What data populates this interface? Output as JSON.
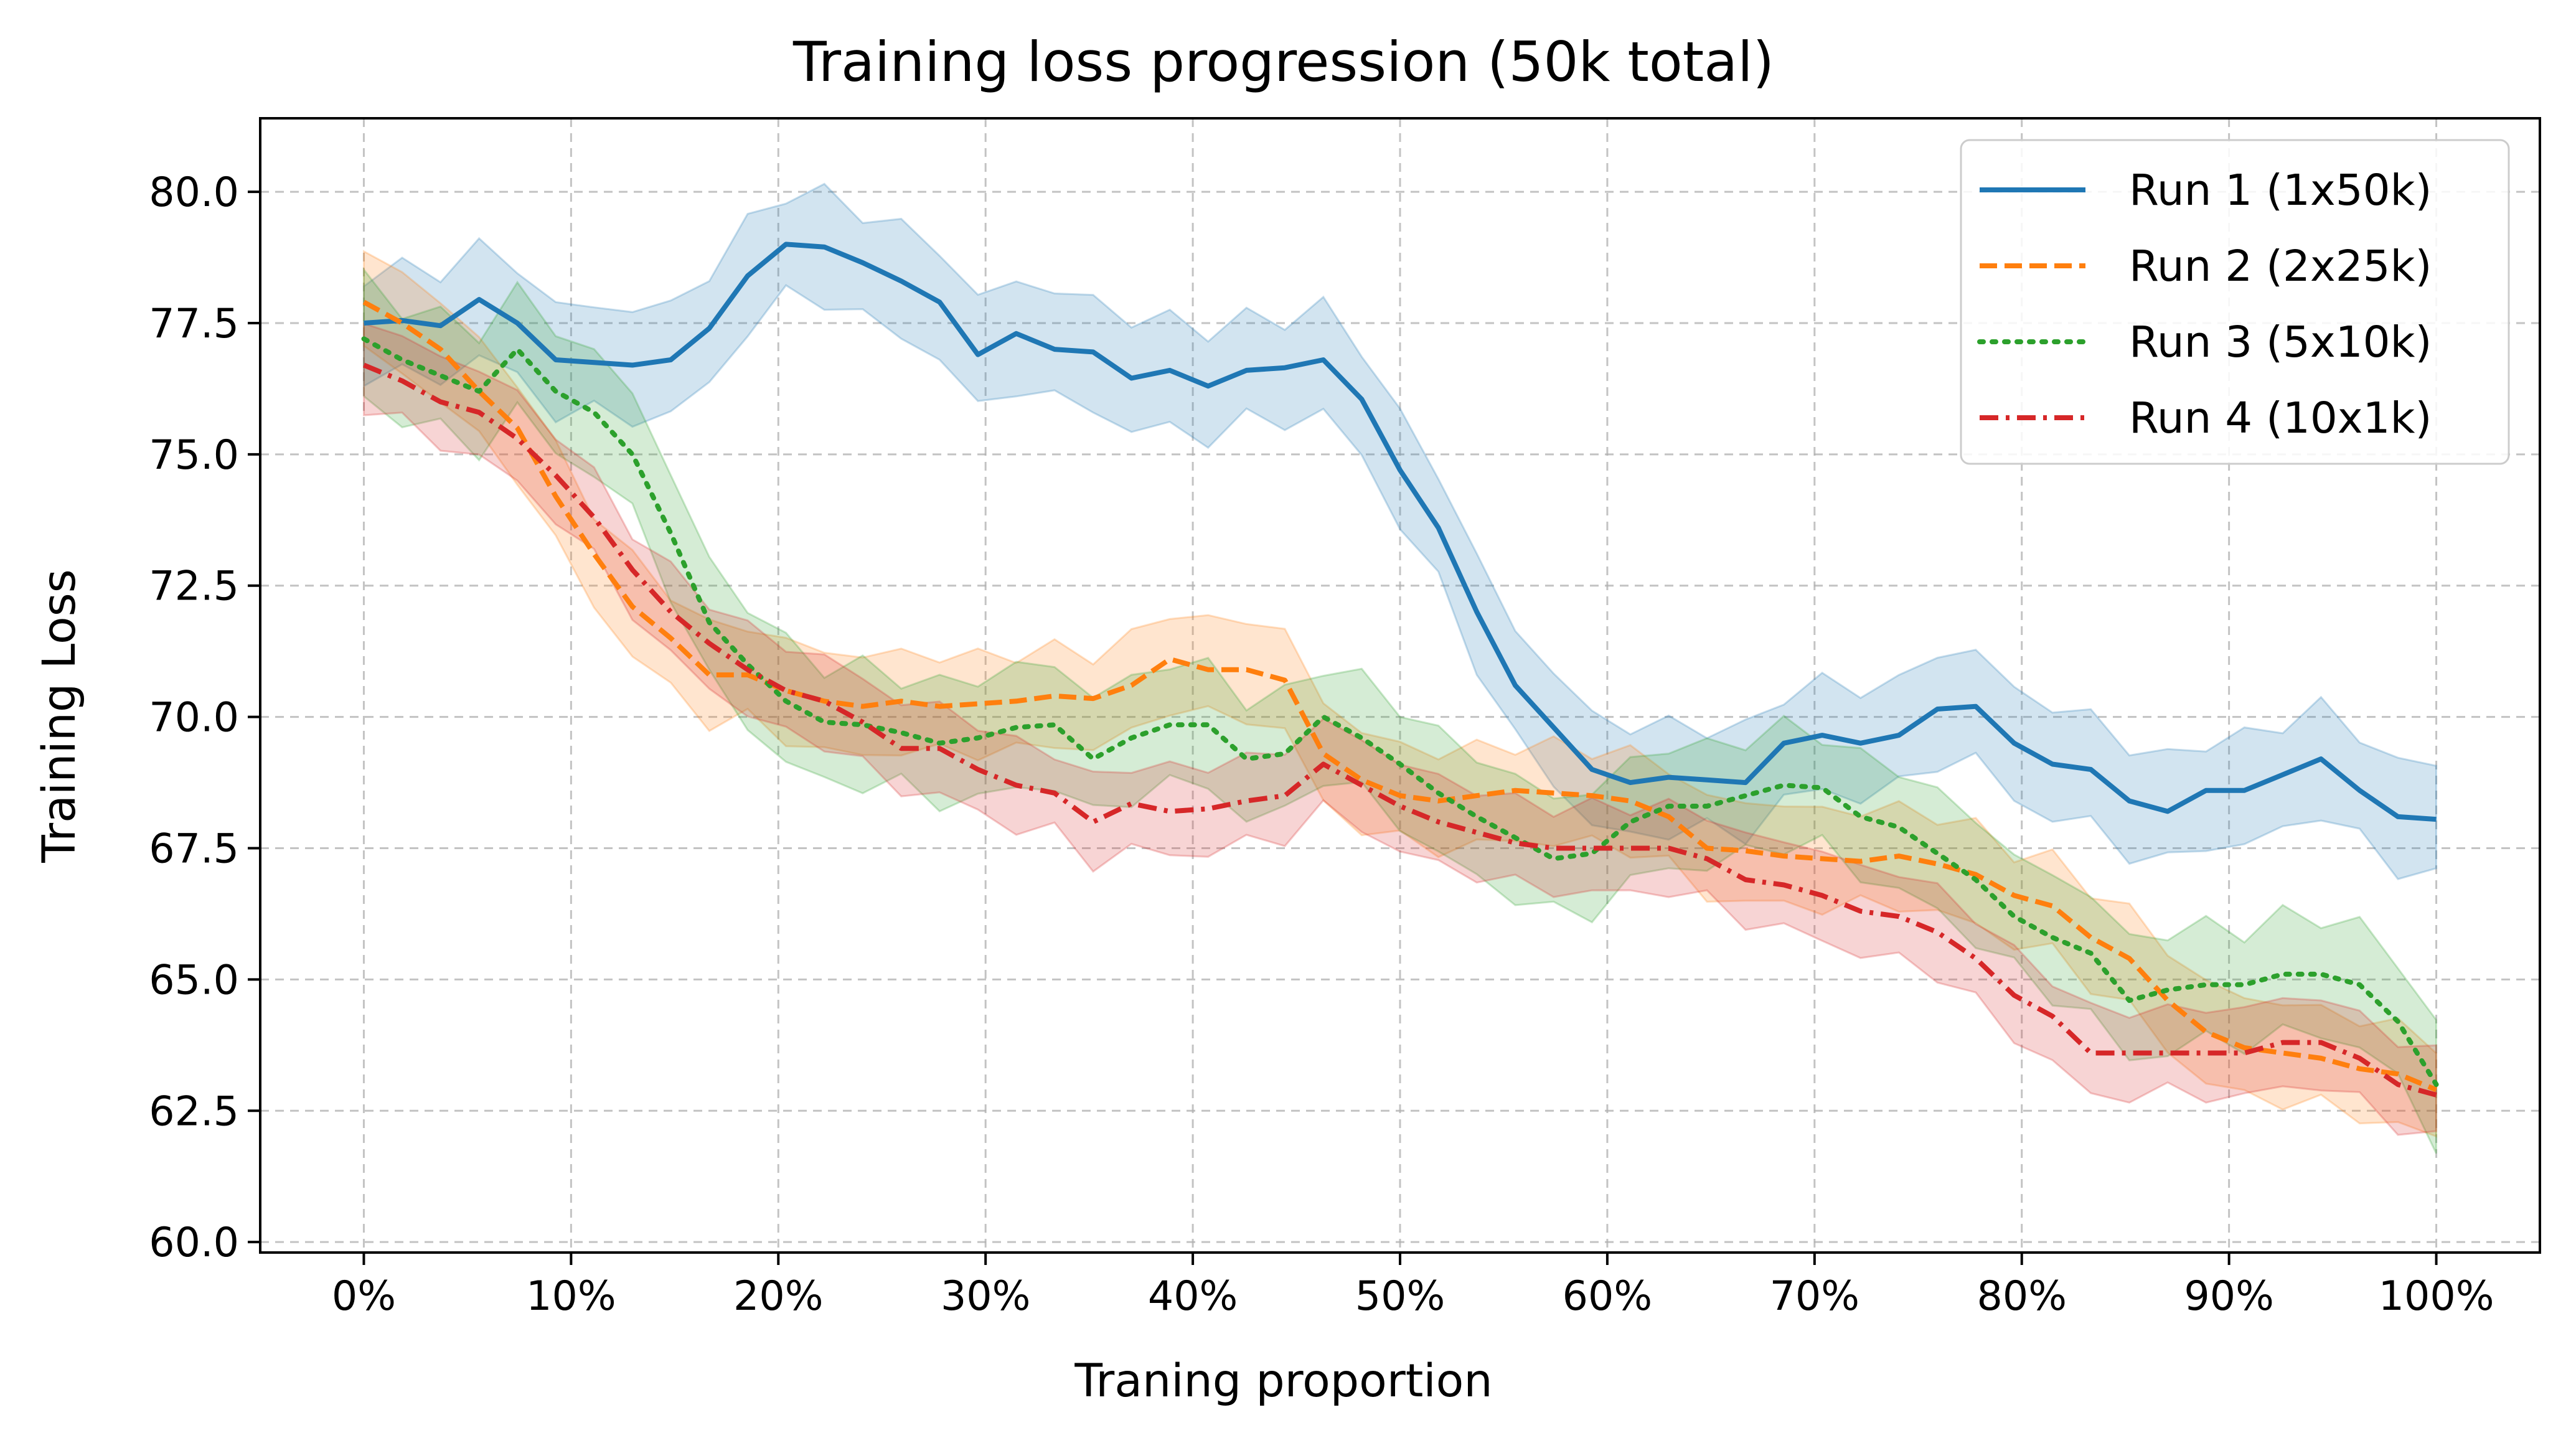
{
  "chart_data": {
    "type": "line",
    "title": "Training loss progression (50k total)",
    "xlabel": "Traning proportion",
    "ylabel": "Training Loss",
    "xlim": [
      -5,
      105
    ],
    "ylim": [
      59.8,
      81.4
    ],
    "xticks": [
      0,
      10,
      20,
      30,
      40,
      50,
      60,
      70,
      80,
      90,
      100
    ],
    "xtick_labels": [
      "0%",
      "10%",
      "20%",
      "30%",
      "40%",
      "50%",
      "60%",
      "70%",
      "80%",
      "90%",
      "100%"
    ],
    "yticks": [
      60.0,
      62.5,
      65.0,
      67.5,
      70.0,
      72.5,
      75.0,
      77.5,
      80.0
    ],
    "ytick_labels": [
      "60.0",
      "62.5",
      "65.0",
      "67.5",
      "70.0",
      "72.5",
      "75.0",
      "77.5",
      "80.0"
    ],
    "grid": true,
    "legend_position": "top-right",
    "x": [
      0,
      1.85,
      3.7,
      5.56,
      7.41,
      9.26,
      11.11,
      12.96,
      14.81,
      16.67,
      18.52,
      20.37,
      22.22,
      24.07,
      25.93,
      27.78,
      29.63,
      31.48,
      33.33,
      35.19,
      37.04,
      38.89,
      40.74,
      42.59,
      44.44,
      46.3,
      48.15,
      50,
      51.85,
      53.7,
      55.56,
      57.41,
      59.26,
      61.11,
      62.96,
      64.81,
      66.67,
      68.52,
      70.37,
      72.22,
      74.07,
      75.93,
      77.78,
      79.63,
      81.48,
      83.33,
      85.19,
      87.04,
      88.89,
      90.74,
      92.59,
      94.44,
      96.3,
      98.15,
      100
    ],
    "series": [
      {
        "name": "Run 1 (1x50k)",
        "color": "#1f77b4",
        "dash": "solid",
        "band": 1.0,
        "values": [
          77.5,
          77.55,
          77.45,
          77.95,
          77.5,
          76.8,
          76.75,
          76.7,
          76.8,
          77.4,
          78.4,
          79.0,
          78.95,
          78.65,
          78.3,
          77.9,
          76.9,
          77.3,
          77.0,
          76.95,
          76.45,
          76.6,
          76.3,
          76.6,
          76.65,
          76.8,
          76.05,
          74.7,
          73.6,
          72.0,
          70.6,
          69.8,
          69.0,
          68.75,
          68.85,
          68.8,
          68.75,
          69.5,
          69.65,
          69.5,
          69.65,
          70.15,
          70.2,
          69.5,
          69.1,
          69.0,
          68.4,
          68.2,
          68.6,
          68.6,
          68.9,
          69.2,
          68.6,
          68.1,
          68.05
        ]
      },
      {
        "name": "Run 2 (2x25k)",
        "color": "#ff7f0e",
        "dash": "dashed",
        "band": 0.9,
        "values": [
          77.9,
          77.5,
          77.0,
          76.2,
          75.5,
          74.2,
          73.1,
          72.1,
          71.5,
          70.8,
          70.8,
          70.5,
          70.3,
          70.2,
          70.3,
          70.2,
          70.25,
          70.3,
          70.4,
          70.35,
          70.6,
          71.1,
          70.9,
          70.9,
          70.7,
          69.3,
          68.8,
          68.5,
          68.4,
          68.5,
          68.6,
          68.55,
          68.5,
          68.4,
          68.1,
          67.5,
          67.45,
          67.35,
          67.3,
          67.25,
          67.35,
          67.2,
          67.0,
          66.6,
          66.4,
          65.8,
          65.4,
          64.6,
          64.0,
          63.7,
          63.6,
          63.5,
          63.3,
          63.2,
          62.9
        ]
      },
      {
        "name": "Run 3 (5x10k)",
        "color": "#2ca02c",
        "dash": "dotted",
        "band": 1.1,
        "values": [
          77.2,
          76.8,
          76.5,
          76.2,
          77.0,
          76.2,
          75.8,
          75.0,
          73.5,
          71.8,
          71.0,
          70.3,
          69.9,
          69.85,
          69.7,
          69.5,
          69.6,
          69.8,
          69.85,
          69.2,
          69.6,
          69.85,
          69.85,
          69.2,
          69.3,
          70.0,
          69.6,
          69.1,
          68.55,
          68.1,
          67.7,
          67.3,
          67.4,
          68.0,
          68.3,
          68.3,
          68.5,
          68.7,
          68.65,
          68.1,
          67.9,
          67.4,
          66.9,
          66.2,
          65.8,
          65.5,
          64.6,
          64.8,
          64.9,
          64.9,
          65.1,
          65.1,
          64.9,
          64.2,
          63.0
        ]
      },
      {
        "name": "Run 4 (10x1k)",
        "color": "#d62728",
        "dash": "dashdot",
        "band": 0.8,
        "values": [
          76.7,
          76.4,
          76.0,
          75.8,
          75.3,
          74.6,
          73.8,
          72.8,
          72.0,
          71.4,
          70.9,
          70.5,
          70.3,
          69.9,
          69.4,
          69.4,
          69.0,
          68.7,
          68.55,
          68.0,
          68.35,
          68.2,
          68.25,
          68.4,
          68.5,
          69.1,
          68.7,
          68.3,
          68.0,
          67.8,
          67.6,
          67.5,
          67.5,
          67.5,
          67.5,
          67.3,
          66.9,
          66.8,
          66.6,
          66.3,
          66.2,
          65.9,
          65.4,
          64.7,
          64.3,
          63.6,
          63.6,
          63.6,
          63.6,
          63.6,
          63.8,
          63.8,
          63.5,
          63.0,
          62.8
        ]
      }
    ]
  }
}
